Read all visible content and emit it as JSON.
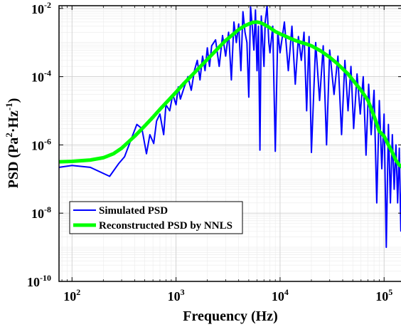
{
  "chart_data": {
    "type": "line",
    "title": "",
    "xlabel": "Frequency (Hz)",
    "ylabel": {
      "base": "PSD (Pa",
      "sup1": "2",
      "mid": "·Hz",
      "sup2": "-1",
      "end": ")"
    },
    "xscale": "log",
    "yscale": "log",
    "xlim": [
      75,
      150000
    ],
    "ylim": [
      1e-10,
      0.012
    ],
    "grid": true,
    "minor_grid": true,
    "legend_position": "lower-left",
    "x_ticks": [
      {
        "value": 100,
        "base": "10",
        "exp": "2"
      },
      {
        "value": 1000,
        "base": "10",
        "exp": "3"
      },
      {
        "value": 10000,
        "base": "10",
        "exp": "4"
      },
      {
        "value": 100000,
        "base": "10",
        "exp": "5"
      }
    ],
    "y_ticks": [
      {
        "value": 1e-10,
        "base": "10",
        "exp": "-10"
      },
      {
        "value": 1e-08,
        "base": "10",
        "exp": "-8"
      },
      {
        "value": 1e-06,
        "base": "10",
        "exp": "-6"
      },
      {
        "value": 0.0001,
        "base": "10",
        "exp": "-4"
      },
      {
        "value": 0.01,
        "base": "10",
        "exp": "-2"
      }
    ],
    "series": [
      {
        "name": "Simulated PSD",
        "color": "#0000ff",
        "line_width": 2,
        "x": [
          75,
          100,
          150,
          230,
          280,
          320,
          380,
          420,
          470,
          520,
          560,
          610,
          650,
          700,
          760,
          800,
          870,
          930,
          1000,
          1050,
          1100,
          1200,
          1300,
          1400,
          1500,
          1600,
          1700,
          1800,
          1900,
          2000,
          2100,
          2200,
          2400,
          2600,
          2800,
          3000,
          3200,
          3400,
          3600,
          3800,
          4000,
          4200,
          4400,
          4600,
          4800,
          5000,
          5200,
          5400,
          5600,
          5800,
          6000,
          6200,
          6400,
          6600,
          6800,
          7000,
          7200,
          7500,
          7800,
          8000,
          8500,
          9000,
          9500,
          10000,
          11000,
          12000,
          13000,
          14000,
          15000,
          16000,
          17000,
          18000,
          19000,
          20000,
          22000,
          24000,
          26000,
          28000,
          30000,
          33000,
          36000,
          39000,
          42000,
          45000,
          48000,
          51000,
          55000,
          59000,
          63000,
          67000,
          71000,
          75000,
          80000,
          85000,
          90000,
          95000,
          100000,
          105000,
          110000,
          115000,
          120000,
          125000,
          130000,
          135000,
          140000,
          145000,
          150000
        ],
        "y": [
          2.2e-07,
          2.5e-07,
          2.2e-07,
          1.2e-07,
          2.8e-07,
          4.5e-07,
          1.8e-06,
          4e-06,
          3e-06,
          5.5e-07,
          2e-06,
          1.1e-06,
          5e-06,
          8e-06,
          2e-06,
          1.5e-05,
          1e-05,
          3e-05,
          1.5e-05,
          5e-05,
          2.2e-05,
          5e-05,
          0.0001,
          4e-05,
          0.00015,
          0.0003,
          8e-05,
          0.0004,
          0.00015,
          0.0007,
          0.0002,
          0.0008,
          0.0012,
          0.0002,
          0.0016,
          0.0004,
          0.002,
          8e-05,
          0.004,
          0.001,
          0.0035,
          0.00015,
          0.008,
          0.002,
          0.001,
          2.5e-05,
          0.011,
          0.003,
          0.0006,
          0.009,
          0.00015,
          0.003,
          7e-07,
          0.006,
          0.001,
          0.0002,
          0.004,
          0.012,
          0.001,
          0.0005,
          0.003,
          6.5e-07,
          0.002,
          0.0005,
          0.004,
          0.00015,
          0.003,
          6e-05,
          0.0015,
          0.0003,
          0.002,
          1e-05,
          0.0015,
          6e-07,
          0.001,
          2e-05,
          0.0008,
          1e-06,
          0.0006,
          3e-05,
          0.0004,
          2e-06,
          0.0003,
          1e-05,
          0.0002,
          3e-06,
          0.00012,
          8e-06,
          0.0001,
          5e-07,
          6e-05,
          2e-06,
          4e-05,
          2e-08,
          2e-05,
          2e-07,
          8e-06,
          1e-09,
          4e-06,
          2e-08,
          2e-06,
          5e-08,
          1e-06,
          2e-08,
          8e-07,
          3e-09,
          4e-07
        ]
      },
      {
        "name": "Reconstructed PSD by NNLS",
        "color": "#00ff00",
        "line_width": 5,
        "x": [
          75,
          100,
          150,
          200,
          250,
          300,
          400,
          500,
          600,
          700,
          800,
          1000,
          1200,
          1500,
          2000,
          2500,
          3000,
          3500,
          4000,
          4500,
          5000,
          5500,
          6000,
          6500,
          7000,
          8000,
          9000,
          10000,
          12000,
          14000,
          16000,
          18000,
          20000,
          25000,
          30000,
          35000,
          40000,
          45000,
          50000,
          60000,
          70000,
          80000,
          90000,
          100000,
          110000,
          120000,
          130000,
          140000,
          150000
        ],
        "y": [
          3.2e-07,
          3.3e-07,
          3.6e-07,
          4.2e-07,
          5.5e-07,
          8e-07,
          1.8e-06,
          3.6e-06,
          6.5e-06,
          1.1e-05,
          1.7e-05,
          3.5e-05,
          6.5e-05,
          0.00013,
          0.00032,
          0.00065,
          0.00115,
          0.0017,
          0.0024,
          0.003,
          0.0035,
          0.0039,
          0.004,
          0.0038,
          0.0034,
          0.0027,
          0.0021,
          0.0018,
          0.0014,
          0.00115,
          0.001,
          0.0009,
          0.0008,
          0.00055,
          0.00037,
          0.00025,
          0.00017,
          0.00012,
          8e-05,
          4e-05,
          2e-05,
          7e-06,
          2.5e-06,
          1.8e-06,
          1e-06,
          6e-07,
          3.5e-07,
          2.6e-07,
          2.2e-07
        ]
      }
    ]
  }
}
